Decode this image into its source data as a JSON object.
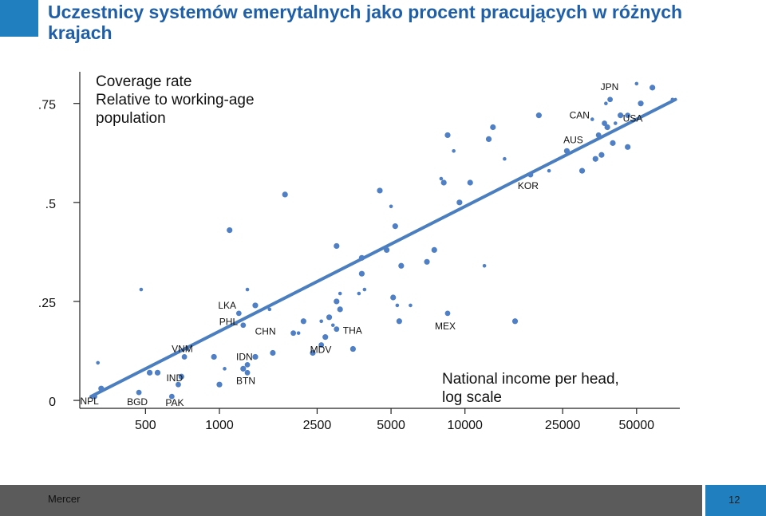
{
  "title": "Uczestnicy systemów emerytalnych jako procent pracujących w różnych krajach",
  "colors": {
    "accent": "#1f7fbf",
    "title": "#1f5fa8",
    "points": "#4f7fc4",
    "trend": "#4a7ebf",
    "footer_dark": "#5b5b5b",
    "footer_blue": "#1f7fbf"
  },
  "footer": {
    "company": "Mercer",
    "page_number": "12"
  },
  "chart_data": {
    "type": "scatter",
    "title": "Coverage rate Relative to working-age population",
    "ylabel_lines": [
      "Coverage rate",
      "Relative to working-age",
      "population"
    ],
    "xlabel_lines": [
      "National income per head,",
      "log scale"
    ],
    "x_scale": "log",
    "xlim": [
      270,
      75000
    ],
    "ylim": [
      -0.02,
      0.83
    ],
    "x_ticks": [
      500,
      1000,
      2500,
      5000,
      10000,
      25000,
      50000
    ],
    "x_tick_labels": [
      "500",
      "1000",
      "2500",
      "5000",
      "10000",
      "25000",
      "50000"
    ],
    "y_ticks": [
      0,
      0.25,
      0.5,
      0.75
    ],
    "y_tick_labels": [
      "0",
      ".25",
      ".5",
      ".75"
    ],
    "trendline": {
      "x": [
        300,
        72000
      ],
      "y": [
        0.01,
        0.76
      ]
    },
    "labeled_points": [
      {
        "label": "NPL",
        "x": 310,
        "y": 0.01
      },
      {
        "label": "BGD",
        "x": 470,
        "y": 0.02
      },
      {
        "label": "PAK",
        "x": 640,
        "y": 0.01
      },
      {
        "label": "IND",
        "x": 680,
        "y": 0.04
      },
      {
        "label": "VNM",
        "x": 720,
        "y": 0.11
      },
      {
        "label": "IDN",
        "x": 1300,
        "y": 0.09
      },
      {
        "label": "BTN",
        "x": 1300,
        "y": 0.07
      },
      {
        "label": "PHL",
        "x": 1250,
        "y": 0.19
      },
      {
        "label": "LKA",
        "x": 1200,
        "y": 0.22
      },
      {
        "label": "CHN",
        "x": 2000,
        "y": 0.17
      },
      {
        "label": "MDV",
        "x": 2600,
        "y": 0.14
      },
      {
        "label": "THA",
        "x": 3000,
        "y": 0.18
      },
      {
        "label": "MEX",
        "x": 8500,
        "y": 0.22
      },
      {
        "label": "KOR",
        "x": 18500,
        "y": 0.57
      },
      {
        "label": "CAN",
        "x": 37000,
        "y": 0.7
      },
      {
        "label": "AUS",
        "x": 35000,
        "y": 0.67
      },
      {
        "label": "JPN",
        "x": 39000,
        "y": 0.76
      },
      {
        "label": "USA",
        "x": 46000,
        "y": 0.72
      }
    ],
    "points": [
      {
        "x": 320,
        "y": 0.095
      },
      {
        "x": 330,
        "y": 0.03
      },
      {
        "x": 520,
        "y": 0.07
      },
      {
        "x": 480,
        "y": 0.28
      },
      {
        "x": 560,
        "y": 0.07
      },
      {
        "x": 700,
        "y": 0.06
      },
      {
        "x": 740,
        "y": 0.13
      },
      {
        "x": 950,
        "y": 0.11
      },
      {
        "x": 1000,
        "y": 0.04
      },
      {
        "x": 1050,
        "y": 0.08
      },
      {
        "x": 1100,
        "y": 0.43
      },
      {
        "x": 1250,
        "y": 0.08
      },
      {
        "x": 1300,
        "y": 0.28
      },
      {
        "x": 1400,
        "y": 0.24
      },
      {
        "x": 1400,
        "y": 0.11
      },
      {
        "x": 1600,
        "y": 0.23
      },
      {
        "x": 1650,
        "y": 0.12
      },
      {
        "x": 1850,
        "y": 0.52
      },
      {
        "x": 2100,
        "y": 0.17
      },
      {
        "x": 2200,
        "y": 0.2
      },
      {
        "x": 2400,
        "y": 0.12
      },
      {
        "x": 2600,
        "y": 0.2
      },
      {
        "x": 2700,
        "y": 0.16
      },
      {
        "x": 2800,
        "y": 0.21
      },
      {
        "x": 2900,
        "y": 0.19
      },
      {
        "x": 3000,
        "y": 0.39
      },
      {
        "x": 3000,
        "y": 0.25
      },
      {
        "x": 3100,
        "y": 0.27
      },
      {
        "x": 3100,
        "y": 0.23
      },
      {
        "x": 3500,
        "y": 0.13
      },
      {
        "x": 3700,
        "y": 0.27
      },
      {
        "x": 3800,
        "y": 0.32
      },
      {
        "x": 3800,
        "y": 0.36
      },
      {
        "x": 3900,
        "y": 0.28
      },
      {
        "x": 4500,
        "y": 0.53
      },
      {
        "x": 4800,
        "y": 0.38
      },
      {
        "x": 5000,
        "y": 0.49
      },
      {
        "x": 5100,
        "y": 0.26
      },
      {
        "x": 5200,
        "y": 0.44
      },
      {
        "x": 5300,
        "y": 0.24
      },
      {
        "x": 5500,
        "y": 0.34
      },
      {
        "x": 5400,
        "y": 0.2
      },
      {
        "x": 6000,
        "y": 0.24
      },
      {
        "x": 7000,
        "y": 0.35
      },
      {
        "x": 7500,
        "y": 0.38
      },
      {
        "x": 8000,
        "y": 0.56
      },
      {
        "x": 8200,
        "y": 0.55
      },
      {
        "x": 8500,
        "y": 0.67
      },
      {
        "x": 9000,
        "y": 0.63
      },
      {
        "x": 9500,
        "y": 0.5
      },
      {
        "x": 10500,
        "y": 0.55
      },
      {
        "x": 12000,
        "y": 0.34
      },
      {
        "x": 12500,
        "y": 0.66
      },
      {
        "x": 13000,
        "y": 0.69
      },
      {
        "x": 14500,
        "y": 0.61
      },
      {
        "x": 16000,
        "y": 0.2
      },
      {
        "x": 20000,
        "y": 0.72
      },
      {
        "x": 22000,
        "y": 0.58
      },
      {
        "x": 26000,
        "y": 0.63
      },
      {
        "x": 30000,
        "y": 0.58
      },
      {
        "x": 33000,
        "y": 0.71
      },
      {
        "x": 34000,
        "y": 0.61
      },
      {
        "x": 36000,
        "y": 0.62
      },
      {
        "x": 37500,
        "y": 0.75
      },
      {
        "x": 38000,
        "y": 0.69
      },
      {
        "x": 40000,
        "y": 0.65
      },
      {
        "x": 41000,
        "y": 0.7
      },
      {
        "x": 43000,
        "y": 0.72
      },
      {
        "x": 46000,
        "y": 0.64
      },
      {
        "x": 50000,
        "y": 0.8
      },
      {
        "x": 52000,
        "y": 0.75
      },
      {
        "x": 58000,
        "y": 0.79
      },
      {
        "x": 70000,
        "y": 0.76
      }
    ]
  }
}
